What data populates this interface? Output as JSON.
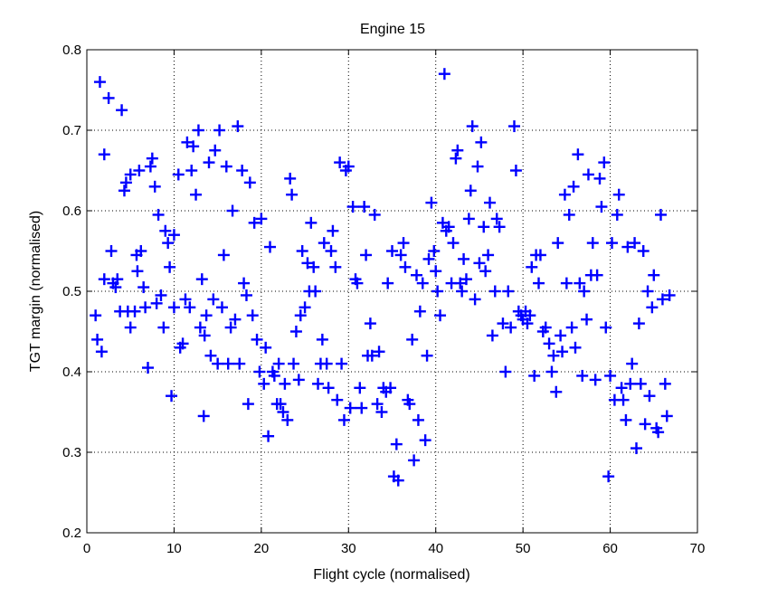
{
  "chart_data": {
    "type": "scatter",
    "title": "Engine 15",
    "xlabel": "Flight cycle (normalised)",
    "ylabel": "TGT margin (normalised)",
    "xlim": [
      0,
      70
    ],
    "ylim": [
      0.2,
      0.8
    ],
    "xticks": [
      "0",
      "10",
      "20",
      "30",
      "40",
      "50",
      "60",
      "70"
    ],
    "yticks": [
      "0.2",
      "0.3",
      "0.4",
      "0.5",
      "0.6",
      "0.7",
      "0.8"
    ],
    "grid": true,
    "marker": "+",
    "series": [
      {
        "color": "#0000ff",
        "points": [
          [
            1.0,
            0.47
          ],
          [
            1.2,
            0.44
          ],
          [
            1.5,
            0.76
          ],
          [
            1.7,
            0.425
          ],
          [
            2.0,
            0.67
          ],
          [
            2.0,
            0.515
          ],
          [
            2.5,
            0.74
          ],
          [
            2.8,
            0.55
          ],
          [
            3.0,
            0.51
          ],
          [
            3.3,
            0.505
          ],
          [
            3.5,
            0.515
          ],
          [
            3.8,
            0.475
          ],
          [
            4.0,
            0.725
          ],
          [
            4.3,
            0.625
          ],
          [
            4.5,
            0.635
          ],
          [
            4.7,
            0.475
          ],
          [
            5.0,
            0.645
          ],
          [
            5.0,
            0.455
          ],
          [
            5.5,
            0.475
          ],
          [
            5.7,
            0.545
          ],
          [
            5.8,
            0.525
          ],
          [
            6.0,
            0.65
          ],
          [
            6.2,
            0.55
          ],
          [
            6.5,
            0.505
          ],
          [
            6.7,
            0.48
          ],
          [
            7.0,
            0.405
          ],
          [
            7.3,
            0.655
          ],
          [
            7.5,
            0.665
          ],
          [
            7.8,
            0.63
          ],
          [
            8.0,
            0.485
          ],
          [
            8.2,
            0.595
          ],
          [
            8.5,
            0.495
          ],
          [
            8.8,
            0.455
          ],
          [
            9.0,
            0.575
          ],
          [
            9.3,
            0.56
          ],
          [
            9.5,
            0.53
          ],
          [
            9.7,
            0.37
          ],
          [
            10.0,
            0.57
          ],
          [
            10.0,
            0.48
          ],
          [
            10.5,
            0.645
          ],
          [
            10.7,
            0.43
          ],
          [
            11.0,
            0.435
          ],
          [
            11.3,
            0.49
          ],
          [
            11.5,
            0.685
          ],
          [
            11.8,
            0.48
          ],
          [
            12.0,
            0.65
          ],
          [
            12.2,
            0.68
          ],
          [
            12.5,
            0.62
          ],
          [
            12.8,
            0.7
          ],
          [
            13.0,
            0.455
          ],
          [
            13.2,
            0.515
          ],
          [
            13.4,
            0.345
          ],
          [
            13.5,
            0.445
          ],
          [
            13.7,
            0.47
          ],
          [
            14.0,
            0.66
          ],
          [
            14.2,
            0.42
          ],
          [
            14.5,
            0.49
          ],
          [
            14.7,
            0.675
          ],
          [
            15.0,
            0.41
          ],
          [
            15.2,
            0.7
          ],
          [
            15.5,
            0.48
          ],
          [
            15.7,
            0.545
          ],
          [
            16.0,
            0.655
          ],
          [
            16.2,
            0.41
          ],
          [
            16.5,
            0.455
          ],
          [
            16.7,
            0.6
          ],
          [
            17.0,
            0.465
          ],
          [
            17.3,
            0.705
          ],
          [
            17.5,
            0.41
          ],
          [
            17.8,
            0.65
          ],
          [
            18.0,
            0.51
          ],
          [
            18.3,
            0.495
          ],
          [
            18.5,
            0.36
          ],
          [
            18.7,
            0.635
          ],
          [
            19.0,
            0.47
          ],
          [
            19.2,
            0.585
          ],
          [
            19.5,
            0.44
          ],
          [
            19.8,
            0.4
          ],
          [
            20.0,
            0.59
          ],
          [
            20.3,
            0.385
          ],
          [
            20.5,
            0.43
          ],
          [
            20.8,
            0.32
          ],
          [
            21.0,
            0.555
          ],
          [
            21.3,
            0.4
          ],
          [
            21.5,
            0.395
          ],
          [
            21.8,
            0.36
          ],
          [
            22.0,
            0.41
          ],
          [
            22.2,
            0.36
          ],
          [
            22.5,
            0.35
          ],
          [
            22.7,
            0.385
          ],
          [
            23.0,
            0.34
          ],
          [
            23.3,
            0.64
          ],
          [
            23.5,
            0.62
          ],
          [
            23.7,
            0.41
          ],
          [
            24.0,
            0.45
          ],
          [
            24.3,
            0.39
          ],
          [
            24.5,
            0.47
          ],
          [
            24.7,
            0.55
          ],
          [
            25.0,
            0.48
          ],
          [
            25.3,
            0.535
          ],
          [
            25.5,
            0.5
          ],
          [
            25.7,
            0.585
          ],
          [
            26.0,
            0.53
          ],
          [
            26.2,
            0.5
          ],
          [
            26.5,
            0.385
          ],
          [
            26.8,
            0.41
          ],
          [
            27.0,
            0.44
          ],
          [
            27.2,
            0.56
          ],
          [
            27.5,
            0.41
          ],
          [
            27.7,
            0.38
          ],
          [
            28.0,
            0.55
          ],
          [
            28.2,
            0.575
          ],
          [
            28.5,
            0.53
          ],
          [
            28.7,
            0.365
          ],
          [
            29.0,
            0.66
          ],
          [
            29.2,
            0.41
          ],
          [
            29.5,
            0.34
          ],
          [
            29.7,
            0.65
          ],
          [
            30.0,
            0.655
          ],
          [
            30.2,
            0.355
          ],
          [
            30.5,
            0.605
          ],
          [
            30.8,
            0.515
          ],
          [
            31.0,
            0.51
          ],
          [
            31.3,
            0.38
          ],
          [
            31.5,
            0.355
          ],
          [
            31.8,
            0.605
          ],
          [
            32.0,
            0.545
          ],
          [
            32.2,
            0.42
          ],
          [
            32.5,
            0.46
          ],
          [
            32.7,
            0.42
          ],
          [
            33.0,
            0.595
          ],
          [
            33.3,
            0.36
          ],
          [
            33.5,
            0.425
          ],
          [
            33.8,
            0.35
          ],
          [
            34.0,
            0.38
          ],
          [
            34.3,
            0.375
          ],
          [
            34.5,
            0.51
          ],
          [
            34.8,
            0.38
          ],
          [
            35.0,
            0.55
          ],
          [
            35.2,
            0.27
          ],
          [
            35.5,
            0.31
          ],
          [
            35.7,
            0.265
          ],
          [
            36.0,
            0.545
          ],
          [
            36.3,
            0.56
          ],
          [
            36.5,
            0.53
          ],
          [
            36.8,
            0.365
          ],
          [
            37.0,
            0.36
          ],
          [
            37.3,
            0.44
          ],
          [
            37.5,
            0.29
          ],
          [
            37.8,
            0.52
          ],
          [
            38.0,
            0.34
          ],
          [
            38.2,
            0.475
          ],
          [
            38.5,
            0.51
          ],
          [
            38.8,
            0.315
          ],
          [
            39.0,
            0.42
          ],
          [
            39.2,
            0.54
          ],
          [
            39.5,
            0.61
          ],
          [
            39.8,
            0.55
          ],
          [
            40.0,
            0.525
          ],
          [
            40.2,
            0.5
          ],
          [
            40.5,
            0.47
          ],
          [
            40.8,
            0.585
          ],
          [
            41.0,
            0.77
          ],
          [
            41.2,
            0.575
          ],
          [
            41.5,
            0.58
          ],
          [
            41.8,
            0.51
          ],
          [
            42.0,
            0.56
          ],
          [
            42.3,
            0.665
          ],
          [
            42.5,
            0.675
          ],
          [
            42.8,
            0.51
          ],
          [
            43.0,
            0.5
          ],
          [
            43.2,
            0.54
          ],
          [
            43.5,
            0.515
          ],
          [
            43.8,
            0.59
          ],
          [
            44.0,
            0.625
          ],
          [
            44.2,
            0.705
          ],
          [
            44.5,
            0.49
          ],
          [
            44.8,
            0.655
          ],
          [
            45.0,
            0.535
          ],
          [
            45.2,
            0.685
          ],
          [
            45.5,
            0.58
          ],
          [
            45.7,
            0.525
          ],
          [
            46.0,
            0.545
          ],
          [
            46.2,
            0.61
          ],
          [
            46.5,
            0.445
          ],
          [
            46.8,
            0.5
          ],
          [
            47.0,
            0.59
          ],
          [
            47.3,
            0.58
          ],
          [
            47.7,
            0.46
          ],
          [
            48.0,
            0.4
          ],
          [
            48.3,
            0.5
          ],
          [
            48.6,
            0.455
          ],
          [
            49.0,
            0.705
          ],
          [
            49.2,
            0.65
          ],
          [
            49.5,
            0.475
          ],
          [
            49.8,
            0.47
          ],
          [
            50.0,
            0.465
          ],
          [
            50.3,
            0.475
          ],
          [
            50.5,
            0.46
          ],
          [
            50.8,
            0.47
          ],
          [
            51.0,
            0.53
          ],
          [
            51.3,
            0.395
          ],
          [
            51.5,
            0.545
          ],
          [
            51.8,
            0.51
          ],
          [
            52.0,
            0.545
          ],
          [
            52.3,
            0.45
          ],
          [
            52.6,
            0.455
          ],
          [
            53.0,
            0.435
          ],
          [
            53.3,
            0.4
          ],
          [
            53.5,
            0.42
          ],
          [
            53.8,
            0.375
          ],
          [
            54.0,
            0.56
          ],
          [
            54.3,
            0.445
          ],
          [
            54.5,
            0.425
          ],
          [
            54.8,
            0.62
          ],
          [
            55.0,
            0.51
          ],
          [
            55.3,
            0.595
          ],
          [
            55.6,
            0.455
          ],
          [
            55.8,
            0.63
          ],
          [
            56.0,
            0.43
          ],
          [
            56.3,
            0.67
          ],
          [
            56.5,
            0.51
          ],
          [
            56.8,
            0.395
          ],
          [
            57.0,
            0.5
          ],
          [
            57.3,
            0.465
          ],
          [
            57.5,
            0.645
          ],
          [
            57.8,
            0.52
          ],
          [
            58.0,
            0.56
          ],
          [
            58.3,
            0.39
          ],
          [
            58.5,
            0.52
          ],
          [
            58.8,
            0.64
          ],
          [
            59.0,
            0.605
          ],
          [
            59.3,
            0.66
          ],
          [
            59.5,
            0.455
          ],
          [
            59.8,
            0.27
          ],
          [
            60.0,
            0.395
          ],
          [
            60.2,
            0.56
          ],
          [
            60.5,
            0.365
          ],
          [
            60.8,
            0.595
          ],
          [
            61.0,
            0.62
          ],
          [
            61.3,
            0.38
          ],
          [
            61.5,
            0.365
          ],
          [
            61.8,
            0.34
          ],
          [
            62.0,
            0.555
          ],
          [
            62.3,
            0.385
          ],
          [
            62.5,
            0.41
          ],
          [
            62.8,
            0.56
          ],
          [
            63.0,
            0.305
          ],
          [
            63.3,
            0.46
          ],
          [
            63.5,
            0.385
          ],
          [
            63.8,
            0.55
          ],
          [
            64.0,
            0.335
          ],
          [
            64.3,
            0.5
          ],
          [
            64.5,
            0.37
          ],
          [
            64.8,
            0.48
          ],
          [
            65.0,
            0.52
          ],
          [
            65.3,
            0.33
          ],
          [
            65.5,
            0.325
          ],
          [
            65.8,
            0.595
          ],
          [
            66.0,
            0.49
          ],
          [
            66.3,
            0.385
          ],
          [
            66.5,
            0.345
          ],
          [
            66.8,
            0.495
          ]
        ]
      }
    ]
  }
}
